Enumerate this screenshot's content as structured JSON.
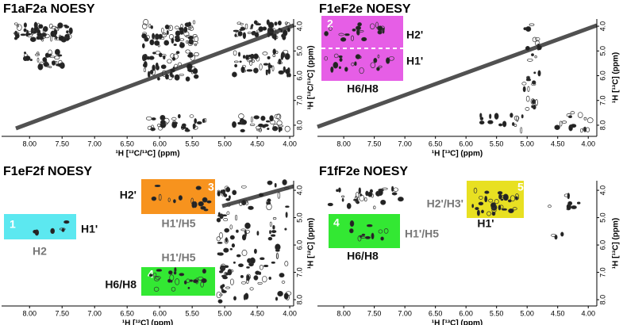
{
  "panels": [
    {
      "title": "F1aF2a NOESY",
      "x_label": "¹H [¹²C/¹³C] (ppm)",
      "y_label": "¹H [¹²C/¹³C] (ppm)",
      "xlim": [
        8.43,
        3.94
      ],
      "ylim": [
        3.71,
        8.45
      ],
      "xticks": [
        {
          "value": 8,
          "label": "8.00"
        },
        {
          "value": 7.5,
          "label": "7.50"
        },
        {
          "value": 7,
          "label": "7.00"
        },
        {
          "value": 6.5,
          "label": "6.50"
        },
        {
          "value": 6,
          "label": "6.00"
        },
        {
          "value": 5.5,
          "label": "5.50"
        },
        {
          "value": 5,
          "label": "5.00"
        },
        {
          "value": 4.5,
          "label": "4.50"
        },
        {
          "value": 4,
          "label": "4.00"
        }
      ],
      "yticks": [
        {
          "value": 4,
          "label": "4.0"
        },
        {
          "value": 5,
          "label": "5.0"
        },
        {
          "value": 6,
          "label": "6.0"
        },
        {
          "value": 7,
          "label": "7.0"
        },
        {
          "value": 8,
          "label": "8.0"
        }
      ],
      "boxes": []
    },
    {
      "title": "F1eF2e NOESY",
      "x_label": "¹H [¹³C] (ppm)",
      "y_label": "¹H [¹³C] (ppm)",
      "xlim": [
        8.43,
        3.86
      ],
      "ylim": [
        3.71,
        8.45
      ],
      "xticks": [
        {
          "value": 8,
          "label": "8.00"
        },
        {
          "value": 7.5,
          "label": "7.50"
        },
        {
          "value": 7,
          "label": "7.00"
        },
        {
          "value": 6.5,
          "label": "6.50"
        },
        {
          "value": 6,
          "label": "6.00"
        },
        {
          "value": 5.5,
          "label": "5.50"
        },
        {
          "value": 5,
          "label": "5.00"
        },
        {
          "value": 4.5,
          "label": "4.50"
        },
        {
          "value": 4,
          "label": "4.00"
        }
      ],
      "yticks": [
        {
          "value": 4,
          "label": "4.0"
        },
        {
          "value": 5,
          "label": "5.0"
        },
        {
          "value": 6,
          "label": "6.0"
        },
        {
          "value": 7,
          "label": "7.0"
        },
        {
          "value": 8,
          "label": "8.0"
        }
      ],
      "boxes": [
        {
          "number": 2,
          "color": "#e65ee6",
          "labels": [
            "H2'",
            "H1'",
            "H6/H8"
          ]
        }
      ]
    },
    {
      "title": "F1eF2f NOESY",
      "x_label": "¹H [¹²C] (ppm)",
      "y_label": "¹H [¹²C] (ppm)",
      "xlim": [
        8.43,
        3.94
      ],
      "ylim": [
        3.65,
        8.23
      ],
      "xticks": [
        {
          "value": 8,
          "label": "8.00"
        },
        {
          "value": 7.5,
          "label": "7.50"
        },
        {
          "value": 7,
          "label": "7.00"
        },
        {
          "value": 6.5,
          "label": "6.50"
        },
        {
          "value": 6,
          "label": "6.00"
        },
        {
          "value": 5.5,
          "label": "5.50"
        },
        {
          "value": 5,
          "label": "5.00"
        },
        {
          "value": 4.5,
          "label": "4.50"
        },
        {
          "value": 4,
          "label": "4.00"
        }
      ],
      "yticks": [
        {
          "value": 4,
          "label": "4.0"
        },
        {
          "value": 5,
          "label": "5.0"
        },
        {
          "value": 6,
          "label": "6.0"
        },
        {
          "value": 7,
          "label": "7.0"
        },
        {
          "value": 8,
          "label": "8.0"
        }
      ],
      "boxes": [
        {
          "number": 1,
          "color": "#5ce8f0",
          "labels": [
            "H1'",
            "H2"
          ]
        },
        {
          "number": 3,
          "color": "#f7931e",
          "labels": [
            "H2'",
            "H1'/H5"
          ]
        },
        {
          "number": 4,
          "color": "#33e833",
          "labels": [
            "H1'/H5",
            "H6/H8"
          ]
        }
      ]
    },
    {
      "title": "F1fF2e NOESY",
      "x_label": "¹H [¹³C] (ppm)",
      "y_label": "¹H [¹³C] (ppm)",
      "xlim": [
        8.43,
        3.86
      ],
      "ylim": [
        3.65,
        8.23
      ],
      "xticks": [
        {
          "value": 8,
          "label": "8.00"
        },
        {
          "value": 7.5,
          "label": "7.50"
        },
        {
          "value": 7,
          "label": "7.00"
        },
        {
          "value": 6.5,
          "label": "6.50"
        },
        {
          "value": 6,
          "label": "6.00"
        },
        {
          "value": 5.5,
          "label": "5.50"
        },
        {
          "value": 5,
          "label": "5.00"
        },
        {
          "value": 4.5,
          "label": "4.50"
        },
        {
          "value": 4,
          "label": "4.00"
        }
      ],
      "yticks": [
        {
          "value": 4,
          "label": "4.0"
        },
        {
          "value": 5,
          "label": "5.0"
        },
        {
          "value": 6,
          "label": "6.0"
        },
        {
          "value": 7,
          "label": "7.0"
        },
        {
          "value": 8,
          "label": "8.0"
        }
      ],
      "boxes": [
        {
          "number": 4,
          "color": "#33e833",
          "labels": [
            "H1'/H5",
            "H6/H8"
          ]
        },
        {
          "number": 5,
          "color": "#e8e022",
          "labels": [
            "H2'/H3'",
            "H1'"
          ]
        }
      ]
    }
  ]
}
